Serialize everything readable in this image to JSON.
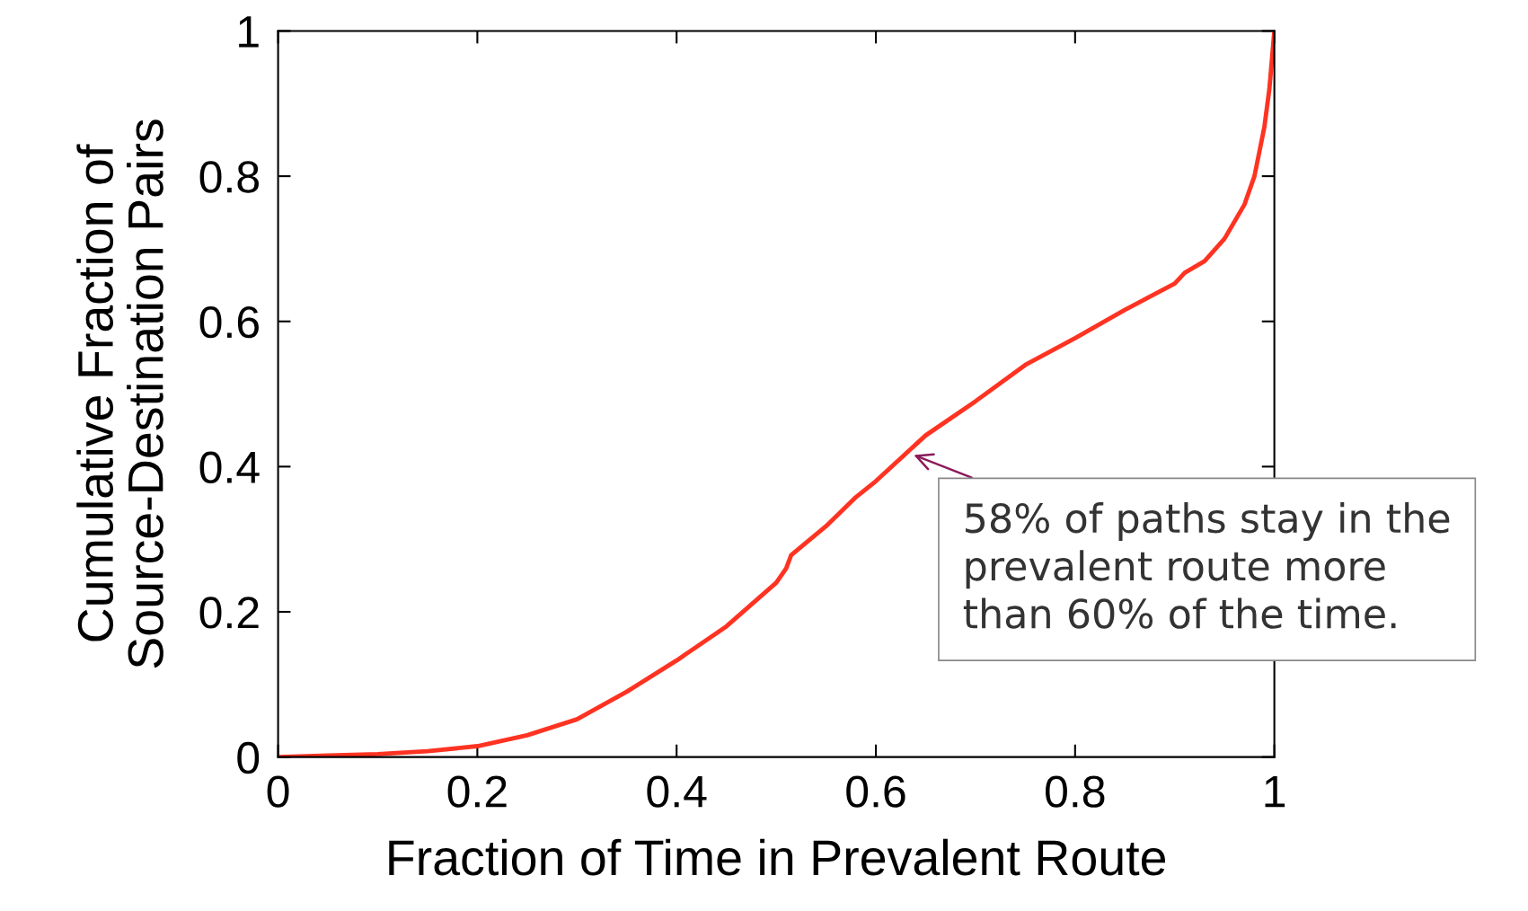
{
  "chart_data": {
    "type": "line",
    "xlabel": "Fraction of Time in Prevalent Route",
    "ylabel": "Cumulative Fraction of\nSource-Destination Pairs",
    "xlim": [
      0,
      1
    ],
    "ylim": [
      0,
      1
    ],
    "xticks": [
      0,
      0.2,
      0.4,
      0.6,
      0.8,
      1
    ],
    "yticks": [
      0,
      0.2,
      0.4,
      0.6,
      0.8,
      1
    ],
    "grid": false,
    "marker": "none",
    "line_style": "solid",
    "series": [
      {
        "color": "#ff3322",
        "x": [
          0,
          0.05,
          0.1,
          0.15,
          0.2,
          0.25,
          0.3,
          0.35,
          0.4,
          0.45,
          0.5,
          0.51,
          0.515,
          0.55,
          0.58,
          0.6,
          0.65,
          0.7,
          0.75,
          0.8,
          0.85,
          0.9,
          0.91,
          0.93,
          0.95,
          0.97,
          0.98,
          0.99,
          0.995,
          1.0
        ],
        "values": [
          0,
          0.002,
          0.004,
          0.008,
          0.015,
          0.03,
          0.052,
          0.09,
          0.133,
          0.18,
          0.24,
          0.26,
          0.278,
          0.318,
          0.358,
          0.38,
          0.443,
          0.49,
          0.54,
          0.577,
          0.616,
          0.652,
          0.667,
          0.683,
          0.714,
          0.761,
          0.8,
          0.868,
          0.92,
          1.0
        ]
      }
    ],
    "annotations": [
      {
        "text": "58% of paths stay in the\nprevalent route more\nthan 60% of the time.",
        "x": 0.638,
        "y": 0.416
      }
    ]
  }
}
